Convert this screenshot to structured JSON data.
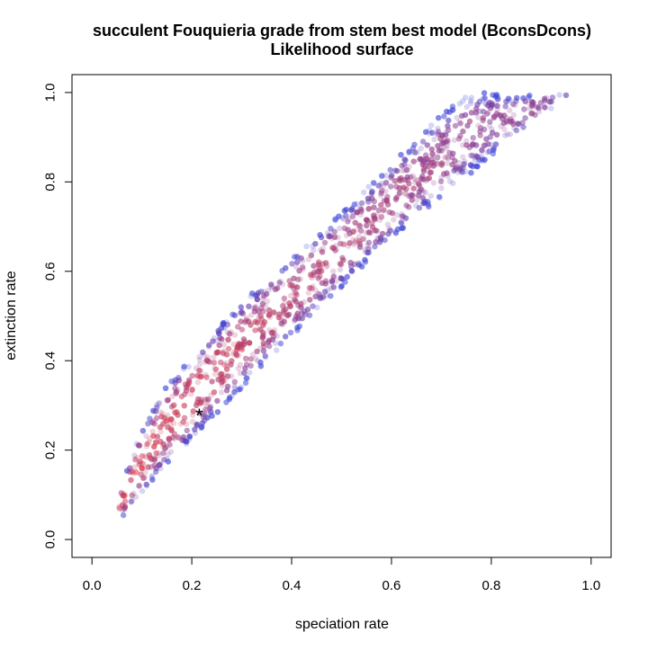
{
  "chart_data": {
    "type": "scatter",
    "title": "succulent Fouquieria grade from stem best model (BconsDcons)",
    "subtitle": "Likelihood surface",
    "xlabel": "speciation rate",
    "ylabel": "extinction rate",
    "xlim": [
      -0.04,
      1.04
    ],
    "ylim": [
      -0.04,
      1.04
    ],
    "x_ticks": [
      "0.0",
      "0.2",
      "0.4",
      "0.6",
      "0.8",
      "1.0"
    ],
    "y_ticks": [
      "0.0",
      "0.2",
      "0.4",
      "0.6",
      "0.8",
      "1.0"
    ],
    "grid": false,
    "legend": "none",
    "colors": {
      "high_likelihood": "#f03c3c",
      "low_likelihood": "#3c46dc",
      "best_marker": "#000000"
    },
    "best_estimate": {
      "x": 0.215,
      "y": 0.278,
      "marker": "*"
    },
    "cloud_boundary": {
      "upper_edge": [
        [
          0.045,
          0.035
        ],
        [
          0.06,
          0.12
        ],
        [
          0.09,
          0.22
        ],
        [
          0.14,
          0.33
        ],
        [
          0.2,
          0.41
        ],
        [
          0.3,
          0.53
        ],
        [
          0.4,
          0.63
        ],
        [
          0.5,
          0.73
        ],
        [
          0.6,
          0.84
        ],
        [
          0.7,
          0.95
        ],
        [
          0.76,
          1.0
        ]
      ],
      "lower_edge": [
        [
          0.05,
          0.035
        ],
        [
          0.08,
          0.08
        ],
        [
          0.15,
          0.17
        ],
        [
          0.25,
          0.28
        ],
        [
          0.35,
          0.4
        ],
        [
          0.45,
          0.51
        ],
        [
          0.55,
          0.62
        ],
        [
          0.65,
          0.72
        ],
        [
          0.75,
          0.81
        ],
        [
          0.85,
          0.9
        ],
        [
          0.95,
          0.99
        ]
      ],
      "top_edge": [
        [
          0.76,
          1.0
        ],
        [
          0.95,
          0.995
        ]
      ]
    },
    "point_count": 3000
  }
}
